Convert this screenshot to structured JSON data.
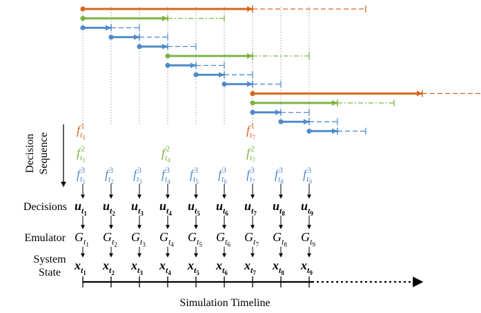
{
  "colors": {
    "f1": "#d5651f",
    "f2": "#7cb342",
    "f3": "#4f8ac9",
    "guide": "#9e9e9e",
    "text": "#000000"
  },
  "labels": {
    "decision_sequence_1": "Decision",
    "decision_sequence_2": "Sequence",
    "decisions": "Decisions",
    "emulator": "Emulator",
    "system": "System",
    "state": "State",
    "timeline": "Simulation Timeline"
  },
  "steps": [
    "1",
    "2",
    "3",
    "4",
    "5",
    "6",
    "7",
    "8",
    "9"
  ],
  "symbols": {
    "u": "u",
    "G": "G",
    "x": "x",
    "t": "t",
    "f": "f"
  },
  "policies": [
    {
      "level": "1",
      "steps": [
        "1",
        "7"
      ]
    },
    {
      "level": "2",
      "steps": [
        "1",
        "4",
        "7"
      ]
    },
    {
      "level": "3",
      "steps": [
        "1",
        "2",
        "3",
        "4",
        "5",
        "6",
        "7",
        "8",
        "9"
      ]
    }
  ],
  "horizons": [
    {
      "level": "1",
      "start": "1",
      "commit": "7",
      "end": "11"
    },
    {
      "level": "2",
      "start": "1",
      "commit": "4",
      "end": "6"
    },
    {
      "level": "3",
      "start": "1",
      "commit": "2",
      "end": "3"
    },
    {
      "level": "3",
      "start": "2",
      "commit": "3",
      "end": "4"
    },
    {
      "level": "3",
      "start": "3",
      "commit": "4",
      "end": "5"
    },
    {
      "level": "2",
      "start": "4",
      "commit": "7",
      "end": "9"
    },
    {
      "level": "3",
      "start": "4",
      "commit": "5",
      "end": "6"
    },
    {
      "level": "3",
      "start": "5",
      "commit": "6",
      "end": "7"
    },
    {
      "level": "3",
      "start": "6",
      "commit": "7",
      "end": "8"
    },
    {
      "level": "1",
      "start": "7",
      "commit": "13",
      "end": "17"
    },
    {
      "level": "2",
      "start": "7",
      "commit": "10",
      "end": "12"
    },
    {
      "level": "3",
      "start": "7",
      "commit": "8",
      "end": "9"
    },
    {
      "level": "3",
      "start": "8",
      "commit": "9",
      "end": "10"
    },
    {
      "level": "3",
      "start": "9",
      "commit": "10",
      "end": "11"
    }
  ]
}
